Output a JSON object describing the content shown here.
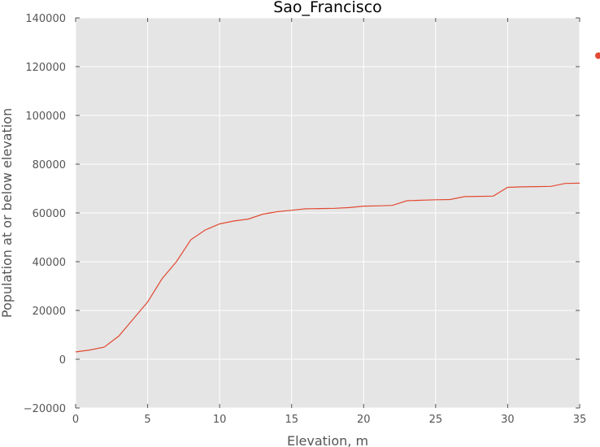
{
  "chart_data": {
    "type": "line",
    "title": "Sao_Francisco",
    "xlabel": "Elevation, m",
    "ylabel": "Population at or below elevation",
    "xlim": [
      0,
      35
    ],
    "ylim": [
      -20000,
      140000
    ],
    "xticks": [
      0,
      5,
      10,
      15,
      20,
      25,
      30,
      35
    ],
    "yticks": [
      -20000,
      0,
      20000,
      40000,
      60000,
      80000,
      100000,
      120000,
      140000
    ],
    "grid": true,
    "series": [
      {
        "color": "#e24a33",
        "x": [
          0,
          1,
          2,
          3,
          4,
          5,
          6,
          7,
          8,
          9,
          10,
          11,
          12,
          13,
          14,
          15,
          16,
          17,
          18,
          19,
          20,
          21,
          22,
          23,
          24,
          25,
          26,
          27,
          28,
          29,
          30,
          31,
          32,
          33,
          34,
          35
        ],
        "values": [
          3000,
          3800,
          5000,
          9500,
          16500,
          23500,
          33000,
          40000,
          49000,
          53000,
          55500,
          56700,
          57500,
          59500,
          60500,
          61100,
          61700,
          61800,
          61900,
          62200,
          62800,
          62900,
          63100,
          65000,
          65200,
          65400,
          65500,
          66700,
          66800,
          66900,
          70500,
          70700,
          70800,
          70900,
          72100,
          72200
        ]
      }
    ],
    "marker_series": [
      {
        "color": "#e24a33",
        "x": 36.3,
        "values": [
          124500
        ]
      }
    ]
  }
}
